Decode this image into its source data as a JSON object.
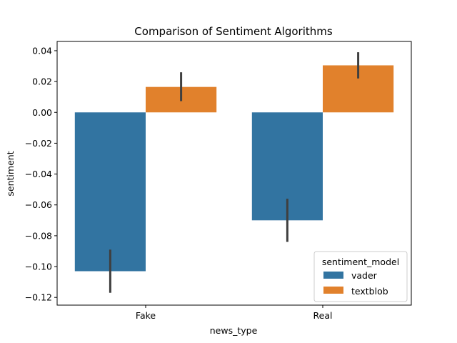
{
  "chart_data": {
    "type": "bar",
    "title": "Comparison of Sentiment Algorithms",
    "xlabel": "news_type",
    "ylabel": "sentiment",
    "categories": [
      "Fake",
      "Real"
    ],
    "series": [
      {
        "name": "vader",
        "color": "#3274a1",
        "values": [
          -0.103,
          -0.07
        ],
        "ci_low": [
          -0.117,
          -0.084
        ],
        "ci_high": [
          -0.089,
          -0.056
        ]
      },
      {
        "name": "textblob",
        "color": "#e1812c",
        "values": [
          0.0165,
          0.0305
        ],
        "ci_low": [
          0.0073,
          0.022
        ],
        "ci_high": [
          0.026,
          0.039
        ]
      }
    ],
    "ylim": [
      -0.125,
      0.046
    ],
    "yticks": [
      0.04,
      0.02,
      0.0,
      -0.02,
      -0.04,
      -0.06,
      -0.08,
      -0.1,
      -0.12
    ],
    "ytick_labels": [
      "0.04",
      "0.02",
      "0.00",
      "−0.02",
      "−0.04",
      "−0.06",
      "−0.08",
      "−0.10",
      "−0.12"
    ],
    "grid": false,
    "legend": {
      "title": "sentiment_model",
      "placement": "lower-right"
    },
    "errorbar_color": "#3f3f3f"
  }
}
